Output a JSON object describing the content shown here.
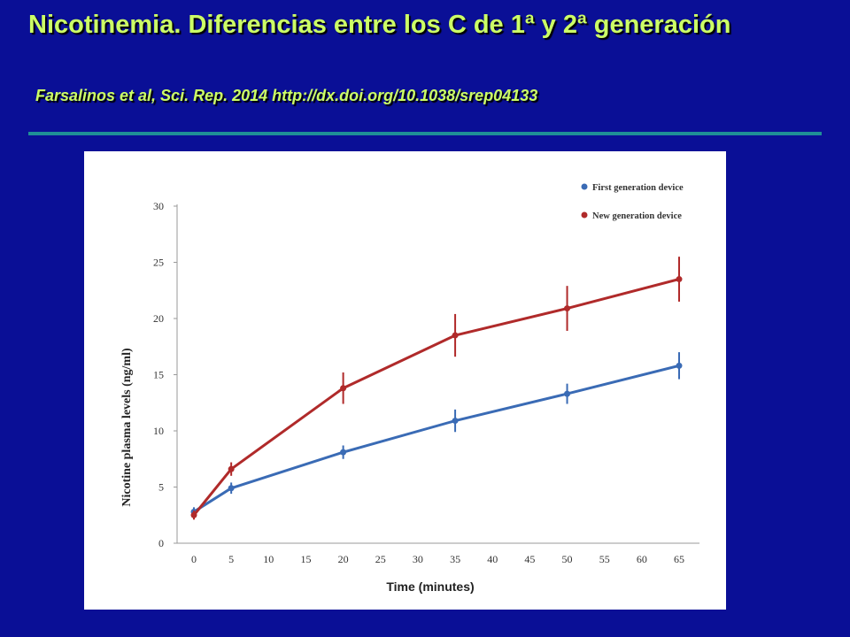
{
  "slide": {
    "title": "Nicotinemia. Diferencias entre los C de 1ª y 2ª generación",
    "subtitle": "Farsalinos et al, Sci. Rep. 2014 http://dx.doi.org/10.1038/srep04133"
  },
  "colors": {
    "background": "#0a0f96",
    "title_text": "#ccff66",
    "rule": "#1f8f96",
    "first_generation": "#3a6bb5",
    "new_generation": "#b02a2a"
  },
  "chart_data": {
    "type": "line",
    "title": "",
    "xlabel": "Time (minutes)",
    "ylabel": "Nicotine plasma levels (ng/ml)",
    "x_ticks": [
      0,
      5,
      10,
      15,
      20,
      25,
      30,
      35,
      40,
      45,
      50,
      55,
      60,
      65
    ],
    "y_ticks": [
      0,
      5,
      10,
      15,
      20,
      25,
      30
    ],
    "xlim": [
      0,
      65
    ],
    "ylim": [
      0,
      30
    ],
    "grid": false,
    "legend_position": "top-right",
    "series": [
      {
        "name": "First generation device",
        "color_key": "first_generation",
        "x": [
          0,
          5,
          20,
          35,
          50,
          65
        ],
        "y": [
          2.8,
          4.9,
          8.1,
          10.9,
          13.3,
          15.8
        ],
        "error": [
          0.4,
          0.5,
          0.6,
          1.0,
          0.9,
          1.2
        ]
      },
      {
        "name": "New generation device",
        "color_key": "new_generation",
        "x": [
          0,
          5,
          20,
          35,
          50,
          65
        ],
        "y": [
          2.5,
          6.6,
          13.8,
          18.5,
          20.9,
          23.5
        ],
        "error": [
          0.4,
          0.6,
          1.4,
          1.9,
          2.0,
          2.0
        ]
      }
    ]
  }
}
